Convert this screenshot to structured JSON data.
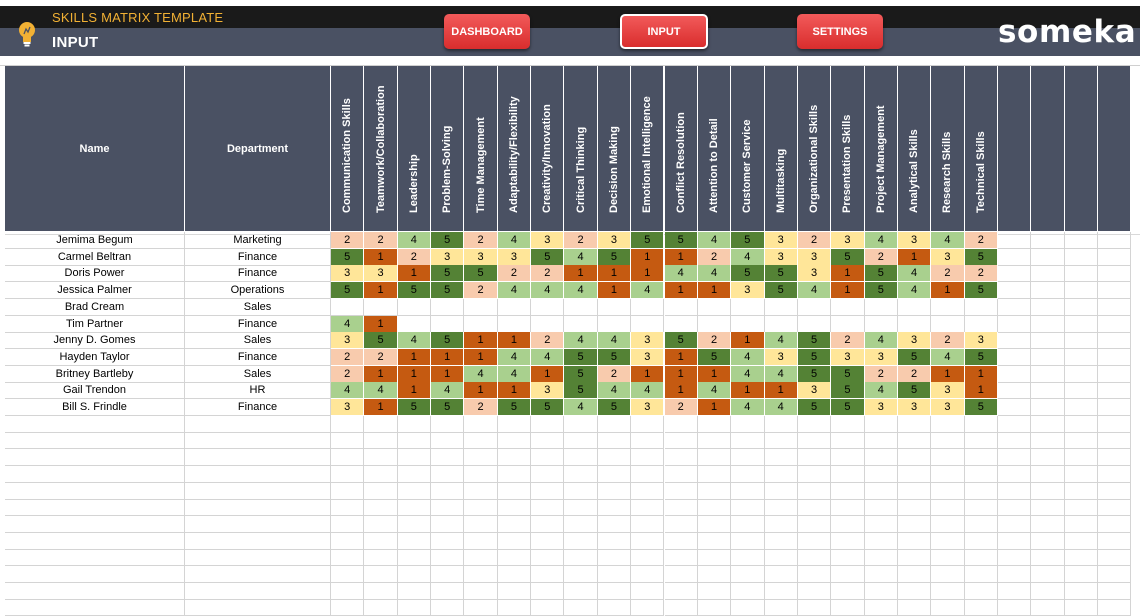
{
  "header": {
    "subtitle": "SKILLS MATRIX TEMPLATE",
    "title": "INPUT",
    "brand": "someka",
    "logo_icon": "lightbulb-icon",
    "nav": [
      {
        "label": "DASHBOARD",
        "active": false
      },
      {
        "label": "INPUT",
        "active": true
      },
      {
        "label": "SETTINGS",
        "active": false
      }
    ]
  },
  "colors": {
    "header_dark": "#1a1a1a",
    "header_slate": "#4a5163",
    "nav_red": "#e23b3b",
    "accent_yellow": "#f2b134",
    "score_1": "#c55a11",
    "score_2": "#f8cbad",
    "score_3": "#ffe699",
    "score_4": "#a9d08e",
    "score_5": "#548235"
  },
  "table": {
    "name_header": "Name",
    "department_header": "Department",
    "skills": [
      "Communication Skills",
      "Teamwork/Collaboration",
      "Leadership",
      "Problem-Solving",
      "Time Management",
      "Adaptability/Flexibility",
      "Creativity/Innovation",
      "Critical Thinking",
      "Decision Making",
      "Emotional Intelligence",
      "Conflict Resolution",
      "Attention to Detail",
      "Customer Service",
      "Multitasking",
      "Organizational Skills",
      "Presentation Skills",
      "Project Management",
      "Analytical Skills",
      "Research Skills",
      "Technical Skills"
    ],
    "rows": [
      {
        "name": "Jemima Begum",
        "department": "Marketing",
        "scores": [
          2,
          2,
          4,
          5,
          2,
          4,
          3,
          2,
          3,
          5,
          5,
          4,
          5,
          3,
          2,
          3,
          4,
          3,
          4,
          2
        ]
      },
      {
        "name": "Carmel Beltran",
        "department": "Finance",
        "scores": [
          5,
          1,
          2,
          3,
          3,
          3,
          5,
          4,
          5,
          1,
          1,
          2,
          4,
          3,
          3,
          5,
          2,
          1,
          3,
          5
        ]
      },
      {
        "name": "Doris Power",
        "department": "Finance",
        "scores": [
          3,
          3,
          1,
          5,
          5,
          2,
          2,
          1,
          1,
          1,
          4,
          4,
          5,
          5,
          3,
          1,
          5,
          4,
          2,
          2
        ]
      },
      {
        "name": "Jessica Palmer",
        "department": "Operations",
        "scores": [
          5,
          1,
          5,
          5,
          2,
          4,
          4,
          4,
          1,
          4,
          1,
          1,
          3,
          5,
          4,
          1,
          5,
          4,
          1,
          5
        ]
      },
      {
        "name": "Brad Cream",
        "department": "Sales",
        "scores": []
      },
      {
        "name": "Tim Partner",
        "department": "Finance",
        "scores": [
          4,
          1
        ]
      },
      {
        "name": "Jenny D. Gomes",
        "department": "Sales",
        "scores": [
          3,
          5,
          4,
          5,
          1,
          1,
          2,
          4,
          4,
          3,
          5,
          2,
          1,
          4,
          5,
          2,
          4,
          3,
          2,
          3
        ]
      },
      {
        "name": "Hayden Taylor",
        "department": "Finance",
        "scores": [
          2,
          2,
          1,
          1,
          1,
          4,
          4,
          5,
          5,
          3,
          1,
          5,
          4,
          3,
          5,
          3,
          3,
          5,
          4,
          5
        ]
      },
      {
        "name": "Britney Bartleby",
        "department": "Sales",
        "scores": [
          2,
          1,
          1,
          1,
          4,
          4,
          1,
          5,
          2,
          1,
          1,
          1,
          4,
          4,
          5,
          5,
          2,
          2,
          1,
          1
        ]
      },
      {
        "name": "Gail Trendon",
        "department": "HR",
        "scores": [
          4,
          4,
          1,
          4,
          1,
          1,
          3,
          5,
          4,
          4,
          1,
          4,
          1,
          1,
          3,
          5,
          4,
          5,
          3,
          1
        ]
      },
      {
        "name": "Bill S. Frindle",
        "department": "Finance",
        "scores": [
          3,
          1,
          5,
          5,
          2,
          5,
          5,
          4,
          5,
          3,
          2,
          1,
          4,
          4,
          5,
          5,
          3,
          3,
          3,
          5
        ]
      }
    ],
    "empty_skill_columns": 4,
    "empty_rows": 12
  }
}
